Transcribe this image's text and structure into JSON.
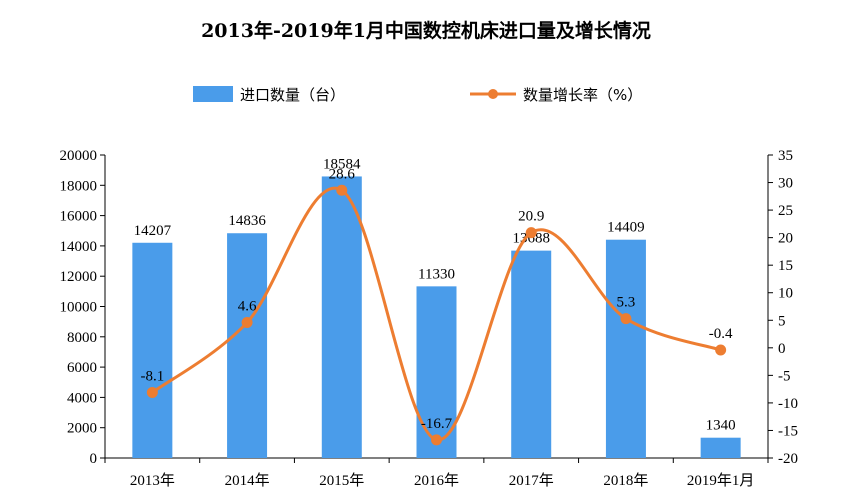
{
  "chart_data": {
    "type": "bar",
    "title": "2013年-2019年1月中国数控机床进口量及增长情况",
    "categories": [
      "2013年",
      "2014年",
      "2015年",
      "2016年",
      "2017年",
      "2018年",
      "2019年1月"
    ],
    "series": [
      {
        "name": "进口数量（台）",
        "type": "bar",
        "axis": "left",
        "color": "#4A9CEA",
        "values": [
          14207,
          14836,
          18584,
          11330,
          13688,
          14409,
          1340
        ]
      },
      {
        "name": "数量增长率（%）",
        "type": "line",
        "axis": "right",
        "color": "#ED7D31",
        "values": [
          -8.1,
          4.6,
          28.6,
          -16.7,
          20.9,
          5.3,
          -0.4
        ]
      }
    ],
    "y_left": {
      "min": 0,
      "max": 20000,
      "step": 2000
    },
    "y_right": {
      "min": -20,
      "max": 35,
      "step": 5
    },
    "legend_position": "top-center",
    "grid": false
  }
}
